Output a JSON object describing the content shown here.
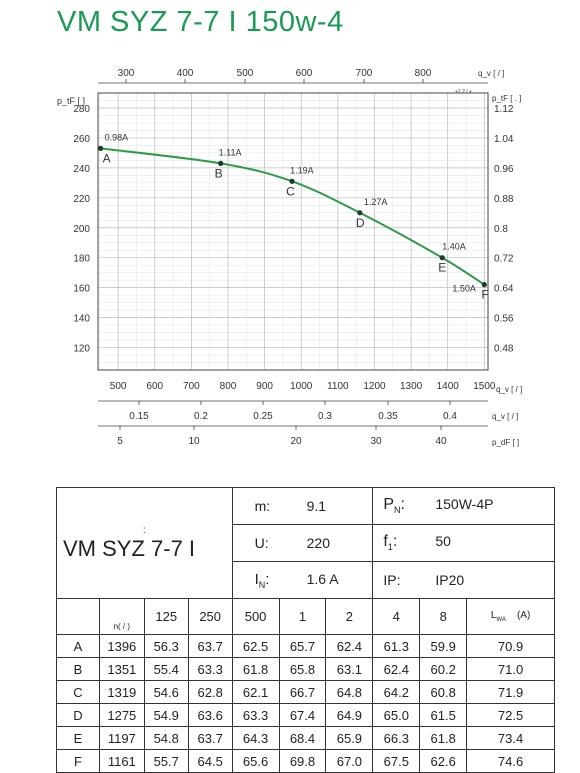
{
  "title": "VM SYZ 7-7 I 150w-4",
  "chart_data": {
    "type": "line",
    "axes": {
      "left": {
        "label": "p_tF [ ]",
        "ticks": [
          120,
          140,
          160,
          180,
          200,
          220,
          240,
          260,
          280
        ],
        "range": [
          105,
          290
        ]
      },
      "right": {
        "label": "p_tF [ . ]",
        "ticks": [
          0.48,
          0.56,
          0.64,
          0.72,
          0.8,
          0.88,
          0.96,
          1.04,
          1.12
        ]
      },
      "top": {
        "label": "q_v [ / ]",
        "ticks": [
          300,
          400,
          500,
          600,
          700,
          800
        ],
        "note": "+1.2 / +"
      },
      "bottom": {
        "label": "q_v [ / ]",
        "ticks": [
          500,
          600,
          700,
          800,
          900,
          1000,
          1100,
          1200,
          1300,
          1400,
          1500
        ],
        "range": [
          445,
          1510
        ]
      },
      "bottom2": {
        "label": "q_v [ / ]",
        "ticks": [
          "0.15",
          "0.2",
          "0.25",
          "0.3",
          "0.35",
          "0.4"
        ]
      },
      "bottom3": {
        "label": "p_dF [ ]",
        "ticks": [
          "5",
          "10",
          "20",
          "30",
          "40"
        ]
      }
    },
    "series": [
      {
        "color": "#2e9a48",
        "points": [
          {
            "x": 452,
            "y": 253
          },
          {
            "x": 780,
            "y": 243
          },
          {
            "x": 975,
            "y": 231
          },
          {
            "x": 1160,
            "y": 210
          },
          {
            "x": 1385,
            "y": 180
          },
          {
            "x": 1500,
            "y": 162
          }
        ]
      }
    ],
    "annotations": [
      {
        "name": "A",
        "current": "0.98A"
      },
      {
        "name": "B",
        "current": "1.11A"
      },
      {
        "name": "C",
        "current": "1.19A"
      },
      {
        "name": "D",
        "current": "1.27A"
      },
      {
        "name": "E",
        "current": "1.40A"
      },
      {
        "name": "F",
        "current": "1.50A"
      }
    ],
    "grid": true
  },
  "specs": {
    "colon": ":",
    "model": "VM SYZ 7-7 I",
    "m_label": "m:",
    "m_value": "9.1",
    "u_label": "U:",
    "u_value": "220",
    "in_label": "I",
    "in_sub": "N",
    "in_colon": ":",
    "in_value": "1.6  A",
    "pn_label": "P",
    "pn_sub": "N",
    "pn_colon": ":",
    "pn_value": "150W-4P",
    "f1_label": "f",
    "f1_sub": "1",
    "f1_colon": ":",
    "f1_value": "50",
    "ip_label": "IP:",
    "ip_value": "IP20"
  },
  "sound_table": {
    "speed_header": "n( / )",
    "freq_headers": [
      "125",
      "250",
      "500",
      "1",
      "2",
      "4",
      "8"
    ],
    "lw_header": "L",
    "lw_sub": "WA",
    "lw_unit": "(A)",
    "rows": [
      {
        "point": "A",
        "n": "1396",
        "v": [
          "56.3",
          "63.7",
          "62.5",
          "65.7",
          "62.4",
          "61.3",
          "59.9"
        ],
        "lw": "70.9"
      },
      {
        "point": "B",
        "n": "1351",
        "v": [
          "55.4",
          "63.3",
          "61.8",
          "65.8",
          "63.1",
          "62.4",
          "60.2"
        ],
        "lw": "71.0"
      },
      {
        "point": "C",
        "n": "1319",
        "v": [
          "54.6",
          "62.8",
          "62.1",
          "66.7",
          "64.8",
          "64.2",
          "60.8"
        ],
        "lw": "71.9"
      },
      {
        "point": "D",
        "n": "1275",
        "v": [
          "54.9",
          "63.6",
          "63.3",
          "67.4",
          "64.9",
          "65.0",
          "61.5"
        ],
        "lw": "72.5"
      },
      {
        "point": "E",
        "n": "1197",
        "v": [
          "54.8",
          "63.7",
          "64.3",
          "68.4",
          "65.9",
          "66.3",
          "61.8"
        ],
        "lw": "73.4"
      },
      {
        "point": "F",
        "n": "1161",
        "v": [
          "55.7",
          "64.5",
          "65.6",
          "69.8",
          "67.0",
          "67.5",
          "62.6"
        ],
        "lw": "74.6"
      }
    ]
  }
}
